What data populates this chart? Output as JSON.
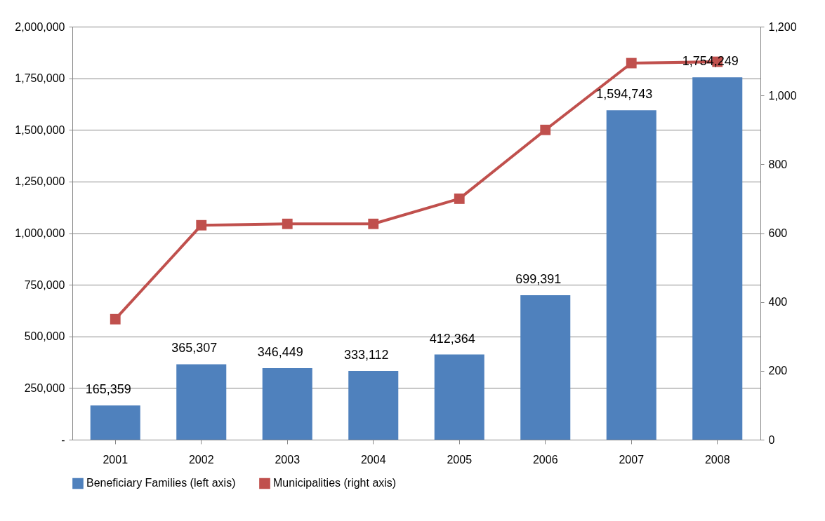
{
  "chart_data": {
    "type": "bar",
    "categories": [
      "2001",
      "2002",
      "2003",
      "2004",
      "2005",
      "2006",
      "2007",
      "2008"
    ],
    "series": [
      {
        "name": "Beneficiary Families (left axis)",
        "color": "#4f81bd",
        "values": [
          165359,
          365307,
          346449,
          333112,
          412364,
          699391,
          1594743,
          1754249
        ],
        "value_labels": [
          "165,359",
          "365,307",
          "346,449",
          "333,112",
          "412,364",
          "699,391",
          "1,594,743",
          "1,754,249"
        ]
      },
      {
        "name": "Municipalities (right axis)",
        "type": "line",
        "axis": "y2",
        "color": "#c0504d",
        "values": [
          350,
          623,
          627,
          627,
          700,
          900,
          1094,
          1098
        ]
      }
    ],
    "ylim": [
      0,
      2000000
    ],
    "yticks": [
      {
        "value": 0,
        "label": "-"
      },
      {
        "value": 250000,
        "label": "250,000"
      },
      {
        "value": 500000,
        "label": "500,000"
      },
      {
        "value": 750000,
        "label": "750,000"
      },
      {
        "value": 1000000,
        "label": "1,000,000"
      },
      {
        "value": 1250000,
        "label": "1,250,000"
      },
      {
        "value": 1500000,
        "label": "1,500,000"
      },
      {
        "value": 1750000,
        "label": "1,750,000"
      },
      {
        "value": 2000000,
        "label": "2,000,000"
      }
    ],
    "y2lim": [
      0,
      1200
    ],
    "y2ticks": [
      0,
      200,
      400,
      600,
      800,
      {
        "value": 1000,
        "label": "1,000"
      },
      {
        "value": 1200,
        "label": "1,200"
      }
    ],
    "grid": "y",
    "legend": "bottom",
    "marker": "square",
    "line_style": "solid"
  }
}
